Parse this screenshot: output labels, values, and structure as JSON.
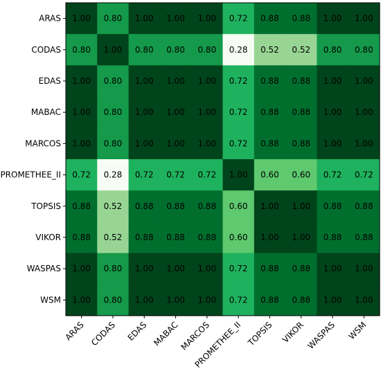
{
  "chart_data": {
    "type": "heatmap",
    "title": "",
    "xlabel": "",
    "ylabel": "",
    "rows": [
      "ARAS",
      "CODAS",
      "EDAS",
      "MABAC",
      "MARCOS",
      "PROMETHEE_II",
      "TOPSIS",
      "VIKOR",
      "WASPAS",
      "WSM"
    ],
    "columns": [
      "ARAS",
      "CODAS",
      "EDAS",
      "MABAC",
      "MARCOS",
      "PROMETHEE_II",
      "TOPSIS",
      "VIKOR",
      "WASPAS",
      "WSM"
    ],
    "values": [
      [
        "1.00",
        "0.80",
        "1.00",
        "1.00",
        "1.00",
        "0.72",
        "0.88",
        "0.88",
        "1.00",
        "1.00"
      ],
      [
        "0.80",
        "1.00",
        "0.80",
        "0.80",
        "0.80",
        "0.28",
        "0.52",
        "0.52",
        "0.80",
        "0.80"
      ],
      [
        "1.00",
        "0.80",
        "1.00",
        "1.00",
        "1.00",
        "0.72",
        "0.88",
        "0.88",
        "1.00",
        "1.00"
      ],
      [
        "1.00",
        "0.80",
        "1.00",
        "1.00",
        "1.00",
        "0.72",
        "0.88",
        "0.88",
        "1.00",
        "1.00"
      ],
      [
        "1.00",
        "0.80",
        "1.00",
        "1.00",
        "1.00",
        "0.72",
        "0.88",
        "0.88",
        "1.00",
        "1.00"
      ],
      [
        "0.72",
        "0.28",
        "0.72",
        "0.72",
        "0.72",
        "1.00",
        "0.60",
        "0.60",
        "0.72",
        "0.72"
      ],
      [
        "0.88",
        "0.52",
        "0.88",
        "0.88",
        "0.88",
        "0.60",
        "1.00",
        "1.00",
        "0.88",
        "0.88"
      ],
      [
        "0.88",
        "0.52",
        "0.88",
        "0.88",
        "0.88",
        "0.60",
        "1.00",
        "1.00",
        "0.88",
        "0.88"
      ],
      [
        "1.00",
        "0.80",
        "1.00",
        "1.00",
        "1.00",
        "0.72",
        "0.88",
        "0.88",
        "1.00",
        "1.00"
      ],
      [
        "1.00",
        "0.80",
        "1.00",
        "1.00",
        "1.00",
        "0.72",
        "0.88",
        "0.88",
        "1.00",
        "1.00"
      ]
    ],
    "value_range": [
      0.28,
      1.0
    ],
    "colormap": "Greens",
    "colors": {
      "0.28": "#f7fcf5",
      "0.52": "#98d594",
      "0.60": "#5ec96e",
      "0.72": "#1fb25e",
      "0.80": "#149a4a",
      "0.88": "#006f2e",
      "1.00": "#00441b"
    },
    "annotation_color": "#000000",
    "grid": false,
    "legend": false
  }
}
